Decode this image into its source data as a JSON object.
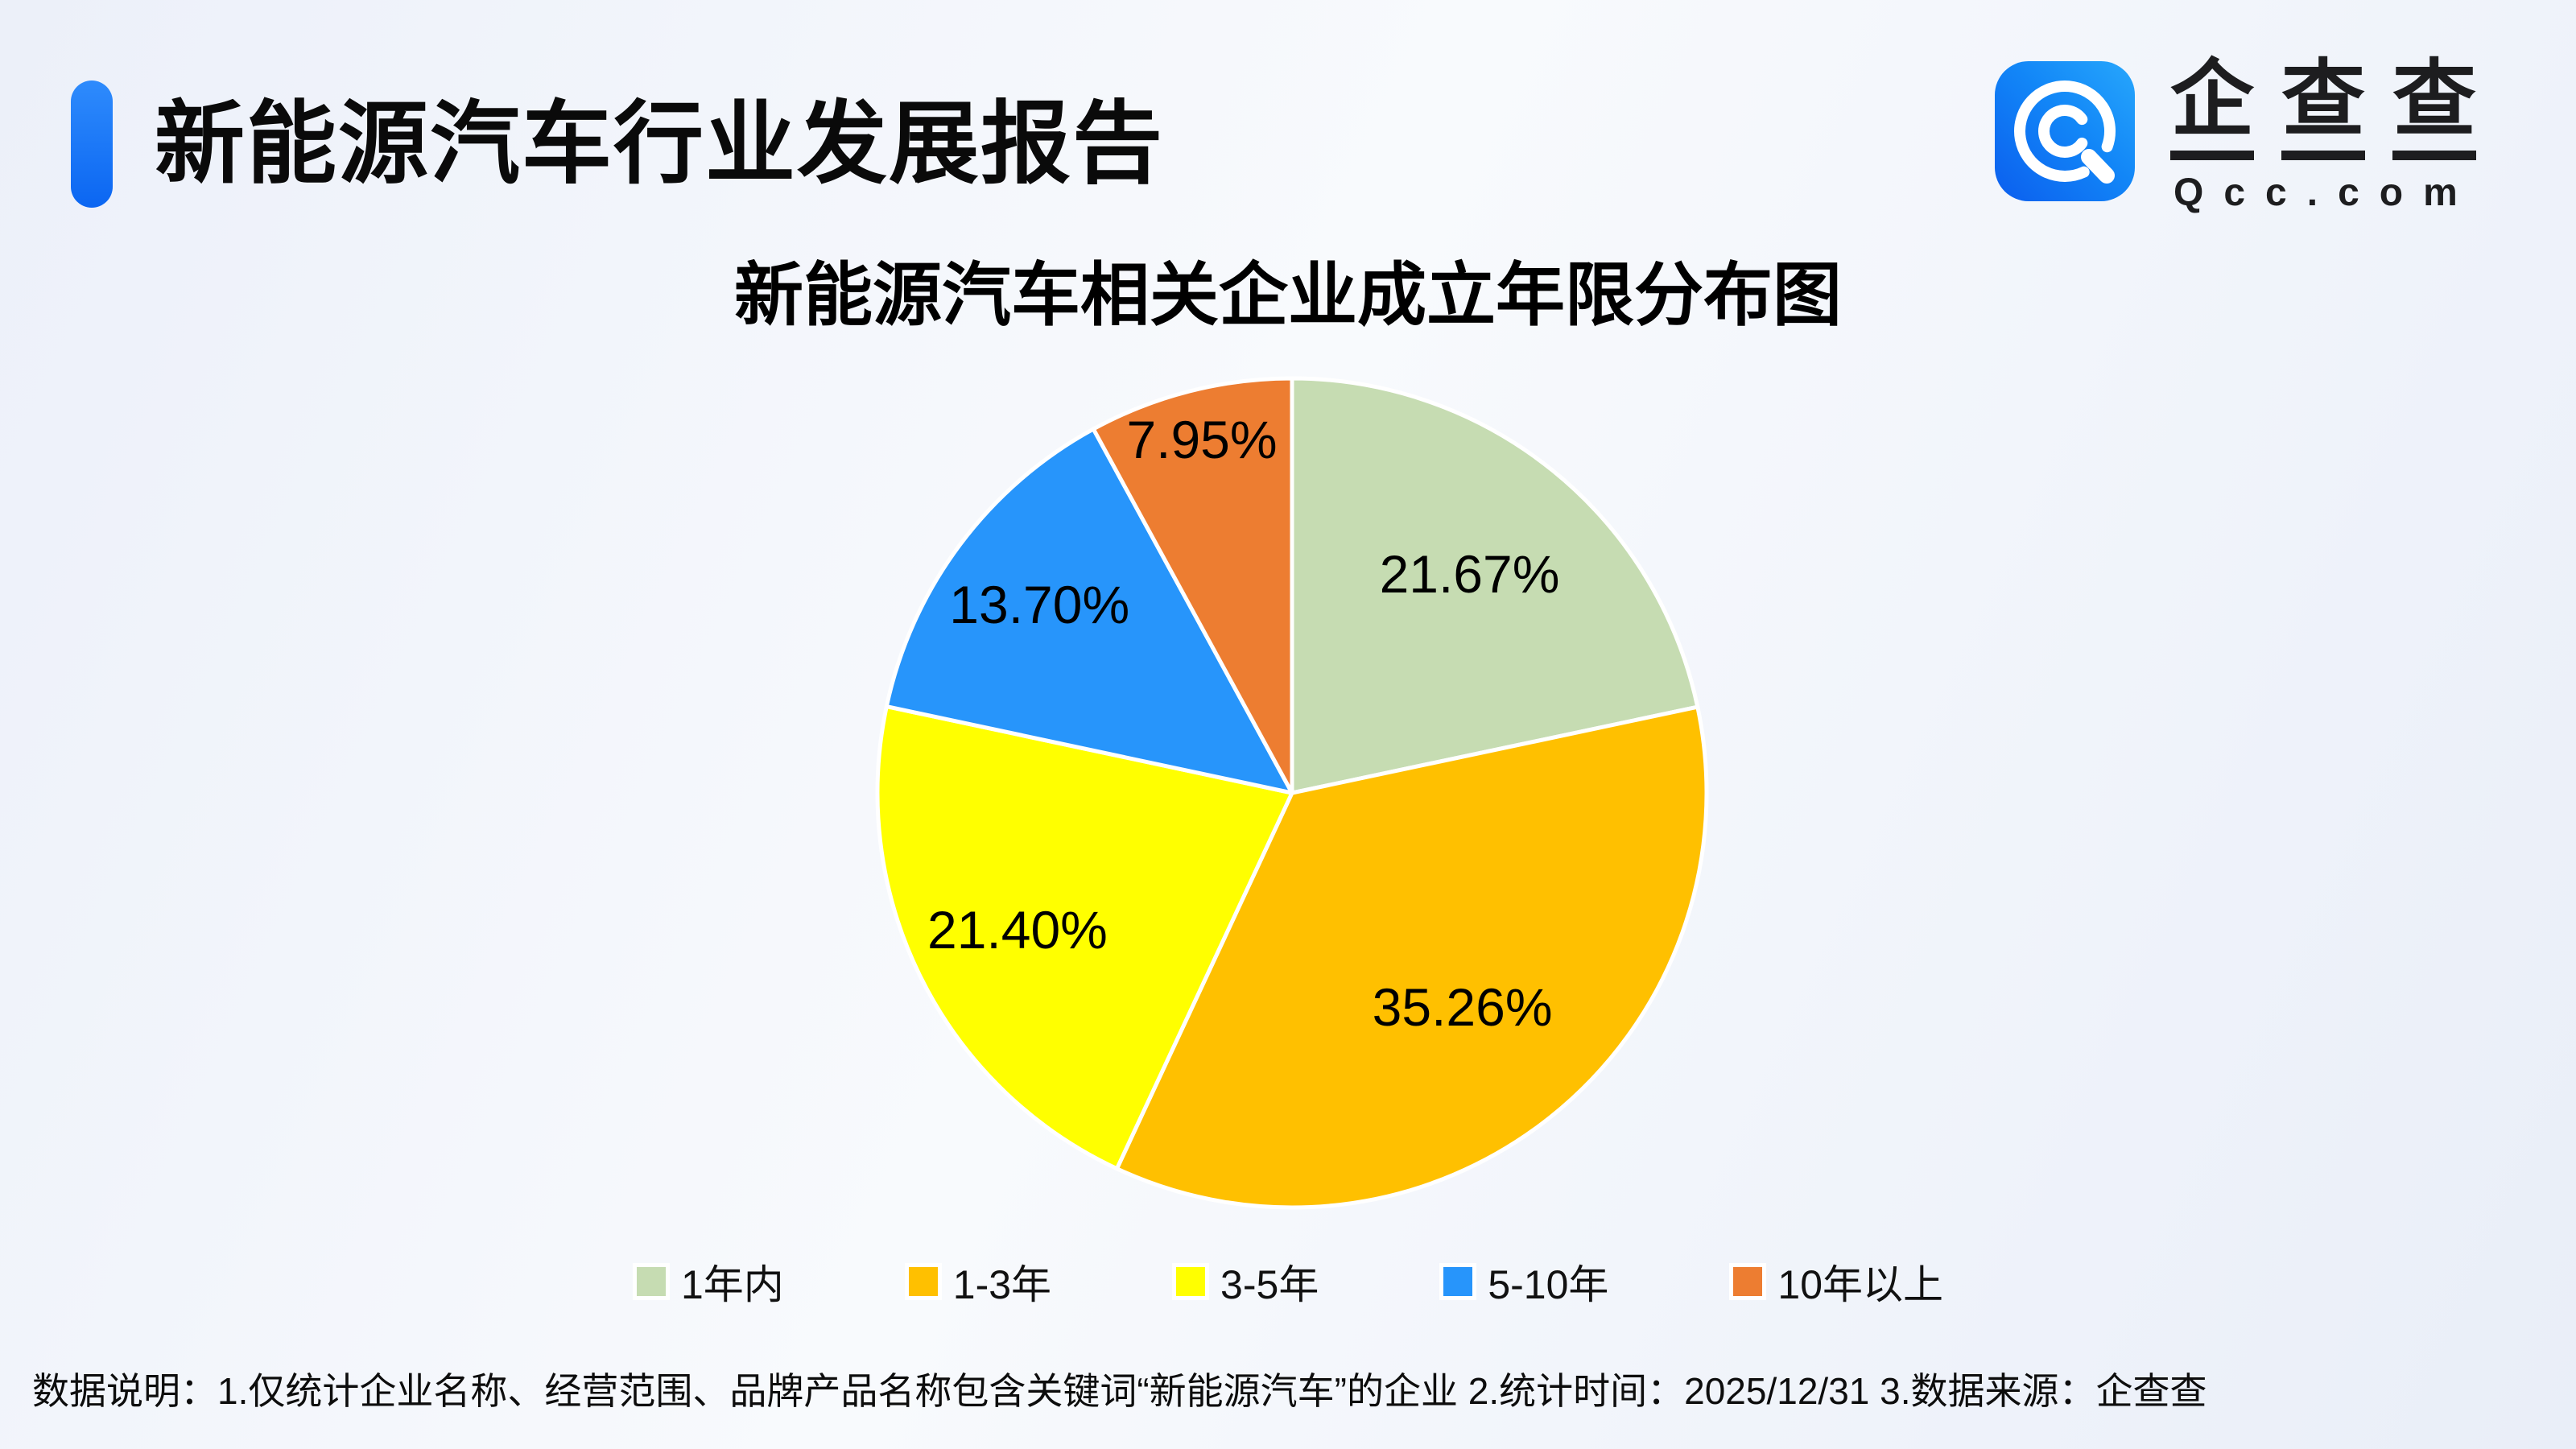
{
  "header": {
    "title": "新能源汽车行业发展报告",
    "brand": {
      "chars": [
        "企",
        "查",
        "查"
      ],
      "domain": "Qcc.com"
    }
  },
  "chart_data": {
    "type": "pie",
    "title": "新能源汽车相关企业成立年限分布图",
    "categories": [
      "1年内",
      "1-3年",
      "3-5年",
      "5-10年",
      "10年以上"
    ],
    "values": [
      21.67,
      35.26,
      21.4,
      13.7,
      7.95
    ],
    "unit": "%",
    "colors": [
      "#c6dcb2",
      "#ffc000",
      "#ffff00",
      "#2795fb",
      "#ed7d31"
    ],
    "start_angle_deg": -90,
    "direction": "clockwise",
    "legend_position": "bottom",
    "label_radius_frac": [
      0.68,
      0.66,
      0.74,
      0.76,
      0.88
    ]
  },
  "footer": {
    "note": "数据说明：1.仅统计企业名称、经营范围、品牌产品名称包含关键词“新能源汽车”的企业  2.统计时间：2025/12/31  3.数据来源：企查查"
  },
  "theme": {
    "accent_blue": "#1677ff",
    "slice_border": "#ffffff",
    "background": "#eef2f9",
    "text": "#111111"
  }
}
